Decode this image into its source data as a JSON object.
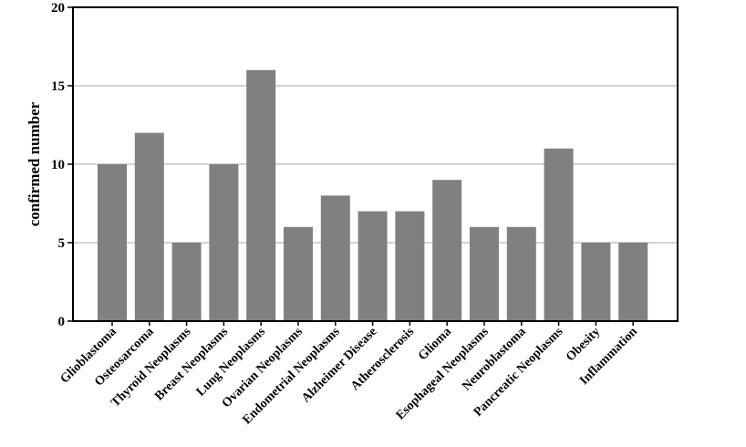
{
  "chart_data": {
    "type": "bar",
    "title": "",
    "xlabel": "",
    "ylabel": "confirmed number",
    "ylim": [
      0,
      20
    ],
    "yticks": [
      0,
      5,
      10,
      15,
      20
    ],
    "grid": true,
    "bar_color": "#808080",
    "grid_color": "#d3d3d3",
    "categories": [
      "Glioblastoma",
      "Osteosarcoma",
      "Thyroid Neoplasms",
      "Breast Neoplasms",
      "Lung Neoplasms",
      "Ovarian Neoplasms",
      "Endometrial Neoplasms",
      "Alzheimer Disease",
      "Atherosclerosis",
      "Glioma",
      "Esophageal Neoplasms",
      "Neuroblastoma",
      "Pancreatic Neoplasms",
      "Obesity",
      "Inflammation"
    ],
    "values": [
      10,
      12,
      5,
      10,
      16,
      6,
      8,
      7,
      7,
      9,
      6,
      6,
      11,
      5,
      5
    ]
  }
}
